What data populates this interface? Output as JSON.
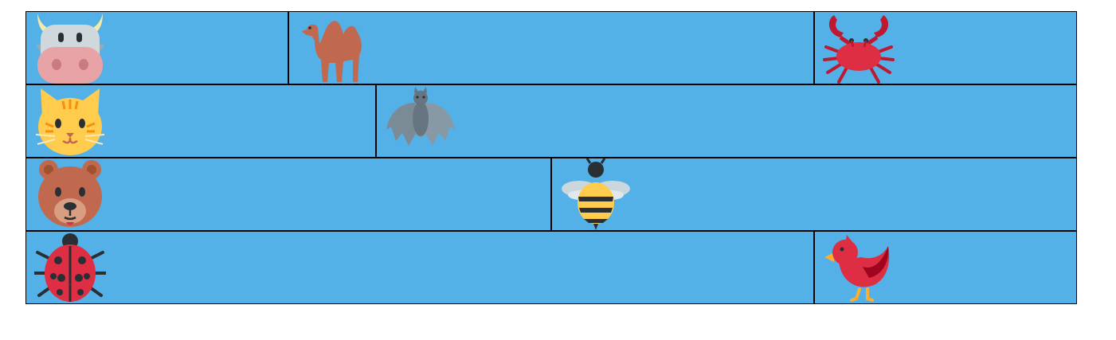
{
  "rows": [
    {
      "cells": [
        {
          "icon": "cow-face-icon"
        },
        {
          "icon": "camel-icon"
        },
        {
          "icon": "crab-icon"
        }
      ]
    },
    {
      "cells": [
        {
          "icon": "cat-face-icon"
        },
        {
          "icon": "bat-icon"
        }
      ]
    },
    {
      "cells": [
        {
          "icon": "bear-face-icon"
        },
        {
          "icon": "bee-icon"
        }
      ]
    },
    {
      "cells": [
        {
          "icon": "ladybug-icon"
        },
        {
          "icon": "red-bird-icon"
        }
      ]
    }
  ],
  "colors": {
    "cell_background": "#53b1e8",
    "grid_lines": "#000000",
    "page_background": "#ffffff"
  }
}
